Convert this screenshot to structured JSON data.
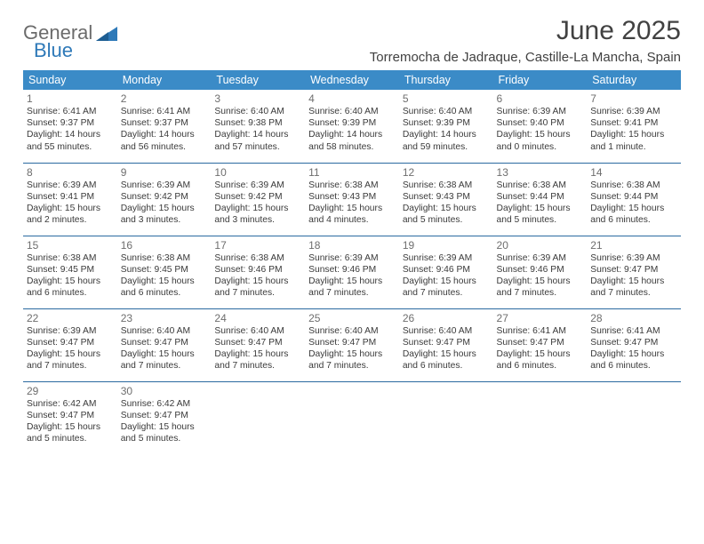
{
  "logo": {
    "word1": "General",
    "word2": "Blue",
    "mark_color": "#2e79b8"
  },
  "title": "June 2025",
  "location": "Torremocha de Jadraque, Castille-La Mancha, Spain",
  "colors": {
    "header_bg": "#3b8bc7",
    "header_text": "#ffffff",
    "row_border": "#2b6aa0",
    "daynum": "#6e6e6e",
    "body_text": "#3a3a3a"
  },
  "weekdays": [
    "Sunday",
    "Monday",
    "Tuesday",
    "Wednesday",
    "Thursday",
    "Friday",
    "Saturday"
  ],
  "weeks": [
    [
      {
        "n": "1",
        "sr": "Sunrise: 6:41 AM",
        "ss": "Sunset: 9:37 PM",
        "dl": "Daylight: 14 hours and 55 minutes."
      },
      {
        "n": "2",
        "sr": "Sunrise: 6:41 AM",
        "ss": "Sunset: 9:37 PM",
        "dl": "Daylight: 14 hours and 56 minutes."
      },
      {
        "n": "3",
        "sr": "Sunrise: 6:40 AM",
        "ss": "Sunset: 9:38 PM",
        "dl": "Daylight: 14 hours and 57 minutes."
      },
      {
        "n": "4",
        "sr": "Sunrise: 6:40 AM",
        "ss": "Sunset: 9:39 PM",
        "dl": "Daylight: 14 hours and 58 minutes."
      },
      {
        "n": "5",
        "sr": "Sunrise: 6:40 AM",
        "ss": "Sunset: 9:39 PM",
        "dl": "Daylight: 14 hours and 59 minutes."
      },
      {
        "n": "6",
        "sr": "Sunrise: 6:39 AM",
        "ss": "Sunset: 9:40 PM",
        "dl": "Daylight: 15 hours and 0 minutes."
      },
      {
        "n": "7",
        "sr": "Sunrise: 6:39 AM",
        "ss": "Sunset: 9:41 PM",
        "dl": "Daylight: 15 hours and 1 minute."
      }
    ],
    [
      {
        "n": "8",
        "sr": "Sunrise: 6:39 AM",
        "ss": "Sunset: 9:41 PM",
        "dl": "Daylight: 15 hours and 2 minutes."
      },
      {
        "n": "9",
        "sr": "Sunrise: 6:39 AM",
        "ss": "Sunset: 9:42 PM",
        "dl": "Daylight: 15 hours and 3 minutes."
      },
      {
        "n": "10",
        "sr": "Sunrise: 6:39 AM",
        "ss": "Sunset: 9:42 PM",
        "dl": "Daylight: 15 hours and 3 minutes."
      },
      {
        "n": "11",
        "sr": "Sunrise: 6:38 AM",
        "ss": "Sunset: 9:43 PM",
        "dl": "Daylight: 15 hours and 4 minutes."
      },
      {
        "n": "12",
        "sr": "Sunrise: 6:38 AM",
        "ss": "Sunset: 9:43 PM",
        "dl": "Daylight: 15 hours and 5 minutes."
      },
      {
        "n": "13",
        "sr": "Sunrise: 6:38 AM",
        "ss": "Sunset: 9:44 PM",
        "dl": "Daylight: 15 hours and 5 minutes."
      },
      {
        "n": "14",
        "sr": "Sunrise: 6:38 AM",
        "ss": "Sunset: 9:44 PM",
        "dl": "Daylight: 15 hours and 6 minutes."
      }
    ],
    [
      {
        "n": "15",
        "sr": "Sunrise: 6:38 AM",
        "ss": "Sunset: 9:45 PM",
        "dl": "Daylight: 15 hours and 6 minutes."
      },
      {
        "n": "16",
        "sr": "Sunrise: 6:38 AM",
        "ss": "Sunset: 9:45 PM",
        "dl": "Daylight: 15 hours and 6 minutes."
      },
      {
        "n": "17",
        "sr": "Sunrise: 6:38 AM",
        "ss": "Sunset: 9:46 PM",
        "dl": "Daylight: 15 hours and 7 minutes."
      },
      {
        "n": "18",
        "sr": "Sunrise: 6:39 AM",
        "ss": "Sunset: 9:46 PM",
        "dl": "Daylight: 15 hours and 7 minutes."
      },
      {
        "n": "19",
        "sr": "Sunrise: 6:39 AM",
        "ss": "Sunset: 9:46 PM",
        "dl": "Daylight: 15 hours and 7 minutes."
      },
      {
        "n": "20",
        "sr": "Sunrise: 6:39 AM",
        "ss": "Sunset: 9:46 PM",
        "dl": "Daylight: 15 hours and 7 minutes."
      },
      {
        "n": "21",
        "sr": "Sunrise: 6:39 AM",
        "ss": "Sunset: 9:47 PM",
        "dl": "Daylight: 15 hours and 7 minutes."
      }
    ],
    [
      {
        "n": "22",
        "sr": "Sunrise: 6:39 AM",
        "ss": "Sunset: 9:47 PM",
        "dl": "Daylight: 15 hours and 7 minutes."
      },
      {
        "n": "23",
        "sr": "Sunrise: 6:40 AM",
        "ss": "Sunset: 9:47 PM",
        "dl": "Daylight: 15 hours and 7 minutes."
      },
      {
        "n": "24",
        "sr": "Sunrise: 6:40 AM",
        "ss": "Sunset: 9:47 PM",
        "dl": "Daylight: 15 hours and 7 minutes."
      },
      {
        "n": "25",
        "sr": "Sunrise: 6:40 AM",
        "ss": "Sunset: 9:47 PM",
        "dl": "Daylight: 15 hours and 7 minutes."
      },
      {
        "n": "26",
        "sr": "Sunrise: 6:40 AM",
        "ss": "Sunset: 9:47 PM",
        "dl": "Daylight: 15 hours and 6 minutes."
      },
      {
        "n": "27",
        "sr": "Sunrise: 6:41 AM",
        "ss": "Sunset: 9:47 PM",
        "dl": "Daylight: 15 hours and 6 minutes."
      },
      {
        "n": "28",
        "sr": "Sunrise: 6:41 AM",
        "ss": "Sunset: 9:47 PM",
        "dl": "Daylight: 15 hours and 6 minutes."
      }
    ],
    [
      {
        "n": "29",
        "sr": "Sunrise: 6:42 AM",
        "ss": "Sunset: 9:47 PM",
        "dl": "Daylight: 15 hours and 5 minutes."
      },
      {
        "n": "30",
        "sr": "Sunrise: 6:42 AM",
        "ss": "Sunset: 9:47 PM",
        "dl": "Daylight: 15 hours and 5 minutes."
      },
      null,
      null,
      null,
      null,
      null
    ]
  ]
}
